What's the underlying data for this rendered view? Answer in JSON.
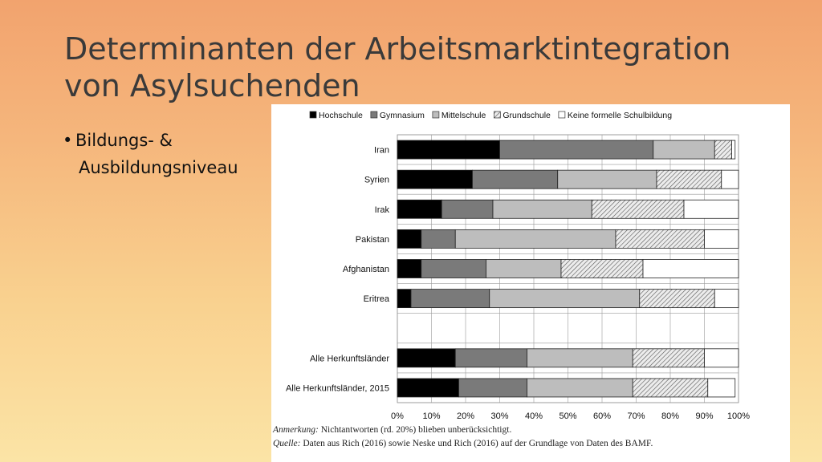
{
  "slide": {
    "title_line1": "Determinanten der Arbeitsmarktintegration",
    "title_line2": "von Asylsuchenden",
    "bullet_line1": "Bildungs- &",
    "bullet_line2": "Ausbildungsniveau"
  },
  "chart_data": {
    "type": "bar",
    "stacked": true,
    "orientation": "horizontal",
    "categories": [
      "Iran",
      "Syrien",
      "Irak",
      "Pakistan",
      "Afghanistan",
      "Eritrea",
      "",
      "Alle Herkunftsländer",
      "Alle Herkunftsländer, 2015"
    ],
    "series": [
      {
        "name": "Hochschule",
        "values": [
          30,
          22,
          13,
          7,
          7,
          4,
          null,
          17,
          18
        ],
        "color": "#000000",
        "pattern": "solid"
      },
      {
        "name": "Gymnasium",
        "values": [
          45,
          25,
          15,
          10,
          19,
          23,
          null,
          21,
          20
        ],
        "color": "#7a7a7a",
        "pattern": "solid"
      },
      {
        "name": "Mittelschule",
        "values": [
          18,
          29,
          29,
          47,
          22,
          44,
          null,
          31,
          31
        ],
        "color": "#bdbdbd",
        "pattern": "solid"
      },
      {
        "name": "Grundschule",
        "values": [
          5,
          19,
          27,
          26,
          24,
          22,
          null,
          21,
          22
        ],
        "color": "#e6e6e6",
        "pattern": "hatched"
      },
      {
        "name": "Keine formelle Schulbildung",
        "values": [
          1,
          5,
          16,
          10,
          28,
          7,
          null,
          10,
          8
        ],
        "color": "#ffffff",
        "pattern": "solid"
      }
    ],
    "xlim": [
      0,
      100
    ],
    "xticks": [
      "0%",
      "10%",
      "20%",
      "30%",
      "40%",
      "50%",
      "60%",
      "70%",
      "80%",
      "90%",
      "100%"
    ],
    "legend_position": "top",
    "grid": true
  },
  "notes": {
    "anmerkung_label": "Anmerkung:",
    "anmerkung_text": " Nichtantworten (rd. 20%) blieben unberücksichtigt.",
    "quelle_label": "Quelle:",
    "quelle_text": " Daten aus Rich (2016) sowie Neske und Rich (2016) auf der Grundlage von Daten des BAMF."
  }
}
